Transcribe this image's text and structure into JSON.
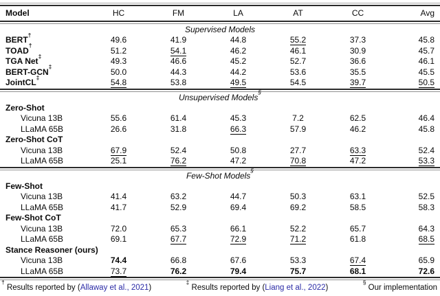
{
  "page": {
    "background": "#ffffff",
    "text_color": "#0a0a0a",
    "link_color": "#2b2ba6",
    "rule_dark": "#2b2b2b",
    "rule_light": "#8f8f8f"
  },
  "table": {
    "header": {
      "model": "Model",
      "cols": [
        "HC",
        "FM",
        "LA",
        "AT",
        "CC",
        "Avg"
      ]
    },
    "sections": [
      {
        "heading": "Supervised Models",
        "heading_sup": "",
        "rows": [
          {
            "model": "BERT",
            "model_sup": "†",
            "type": "model",
            "cells": [
              {
                "v": "49.6"
              },
              {
                "v": "41.9"
              },
              {
                "v": "44.8"
              },
              {
                "v": "55.2",
                "u": true
              },
              {
                "v": "37.3"
              },
              {
                "v": "45.8"
              }
            ]
          },
          {
            "model": "TOAD",
            "model_sup": "†",
            "type": "model",
            "cells": [
              {
                "v": "51.2"
              },
              {
                "v": "54.1",
                "u": true
              },
              {
                "v": "46.2"
              },
              {
                "v": "46.1"
              },
              {
                "v": "30.9"
              },
              {
                "v": "45.7"
              }
            ]
          },
          {
            "model": "TGA Net",
            "model_sup": "‡",
            "type": "model",
            "cells": [
              {
                "v": "49.3"
              },
              {
                "v": "46.6"
              },
              {
                "v": "45.2"
              },
              {
                "v": "52.7"
              },
              {
                "v": "36.6"
              },
              {
                "v": "46.1"
              }
            ]
          },
          {
            "model": "BERT-GCN",
            "model_sup": "‡",
            "type": "model",
            "cells": [
              {
                "v": "50.0"
              },
              {
                "v": "44.3"
              },
              {
                "v": "44.2"
              },
              {
                "v": "53.6"
              },
              {
                "v": "35.5"
              },
              {
                "v": "45.5"
              }
            ]
          },
          {
            "model": "JointCL",
            "model_sup": "‡",
            "type": "model",
            "cells": [
              {
                "v": "54.8",
                "u": true
              },
              {
                "v": "53.8"
              },
              {
                "v": "49.5",
                "u": true
              },
              {
                "v": "54.5"
              },
              {
                "v": "39.7",
                "u": true
              },
              {
                "v": "50.5",
                "u": true
              }
            ]
          }
        ]
      },
      {
        "heading": "Unsupervised Models",
        "heading_sup": "§",
        "rows": [
          {
            "model": "Zero-Shot",
            "model_sup": "",
            "type": "group",
            "cells": []
          },
          {
            "model": "Vicuna 13B",
            "model_sup": "",
            "type": "sub",
            "cells": [
              {
                "v": "55.6"
              },
              {
                "v": "61.4"
              },
              {
                "v": "45.3"
              },
              {
                "v": "7.2"
              },
              {
                "v": "62.5"
              },
              {
                "v": "46.4"
              }
            ]
          },
          {
            "model": "LLaMA 65B",
            "model_sup": "",
            "type": "sub",
            "cells": [
              {
                "v": "26.6"
              },
              {
                "v": "31.8"
              },
              {
                "v": "66.3",
                "u": true
              },
              {
                "v": "57.9"
              },
              {
                "v": "46.2"
              },
              {
                "v": "45.8"
              }
            ]
          },
          {
            "model": "Zero-Shot CoT",
            "model_sup": "",
            "type": "group",
            "cells": []
          },
          {
            "model": "Vicuna 13B",
            "model_sup": "",
            "type": "sub",
            "cells": [
              {
                "v": "67.9",
                "u": true
              },
              {
                "v": "52.4"
              },
              {
                "v": "50.8"
              },
              {
                "v": "27.7"
              },
              {
                "v": "63.3",
                "u": true
              },
              {
                "v": "52.4"
              }
            ]
          },
          {
            "model": "LLaMA 65B",
            "model_sup": "",
            "type": "sub",
            "cells": [
              {
                "v": "25.1"
              },
              {
                "v": "76.2",
                "u": true
              },
              {
                "v": "47.2"
              },
              {
                "v": "70.8",
                "u": true
              },
              {
                "v": "47.2"
              },
              {
                "v": "53.3",
                "u": true
              }
            ]
          }
        ]
      },
      {
        "heading": "Few-Shot Models",
        "heading_sup": "§",
        "rows": [
          {
            "model": "Few-Shot",
            "model_sup": "",
            "type": "group",
            "cells": []
          },
          {
            "model": "Vicuna 13B",
            "model_sup": "",
            "type": "sub",
            "cells": [
              {
                "v": "41.4"
              },
              {
                "v": "63.2"
              },
              {
                "v": "44.7"
              },
              {
                "v": "50.3"
              },
              {
                "v": "63.1"
              },
              {
                "v": "52.5"
              }
            ]
          },
          {
            "model": "LLaMA 65B",
            "model_sup": "",
            "type": "sub",
            "cells": [
              {
                "v": "41.7"
              },
              {
                "v": "52.9"
              },
              {
                "v": "69.4"
              },
              {
                "v": "69.2"
              },
              {
                "v": "58.5"
              },
              {
                "v": "58.3"
              }
            ]
          },
          {
            "model": "Few-Shot CoT",
            "model_sup": "",
            "type": "group",
            "cells": []
          },
          {
            "model": "Vicuna 13B",
            "model_sup": "",
            "type": "sub",
            "cells": [
              {
                "v": "72.0"
              },
              {
                "v": "65.3"
              },
              {
                "v": "66.1"
              },
              {
                "v": "52.2"
              },
              {
                "v": "65.7"
              },
              {
                "v": "64.3"
              }
            ]
          },
          {
            "model": "LLaMA 65B",
            "model_sup": "",
            "type": "sub",
            "cells": [
              {
                "v": "69.1"
              },
              {
                "v": "67.7",
                "u": true
              },
              {
                "v": "72.9",
                "u": true
              },
              {
                "v": "71.2",
                "u": true
              },
              {
                "v": "61.8"
              },
              {
                "v": "68.5",
                "u": true
              }
            ]
          },
          {
            "model": "Stance Reasoner (ours)",
            "model_sup": "",
            "type": "group",
            "cells": []
          },
          {
            "model": "Vicuna 13B",
            "model_sup": "",
            "type": "sub",
            "cells": [
              {
                "v": "74.4",
                "b": true
              },
              {
                "v": "66.8"
              },
              {
                "v": "67.6"
              },
              {
                "v": "53.3"
              },
              {
                "v": "67.4",
                "u": true
              },
              {
                "v": "65.9"
              }
            ]
          },
          {
            "model": "LLaMA 65B",
            "model_sup": "",
            "type": "sub",
            "cells": [
              {
                "v": "73.7",
                "u": true
              },
              {
                "v": "76.2",
                "b": true
              },
              {
                "v": "79.4",
                "b": true
              },
              {
                "v": "75.7",
                "b": true
              },
              {
                "v": "68.1",
                "b": true
              },
              {
                "v": "72.6",
                "b": true
              }
            ]
          }
        ]
      }
    ]
  },
  "footnotes": [
    {
      "sup": "†",
      "prefix": "Results reported by (",
      "link": "Allaway et al., 2021",
      "suffix": ")"
    },
    {
      "sup": "‡",
      "prefix": "Results reported by (",
      "link": "Liang et al., 2022",
      "suffix": ")"
    },
    {
      "sup": "§",
      "prefix": "Our implementation",
      "link": "",
      "suffix": ""
    }
  ]
}
